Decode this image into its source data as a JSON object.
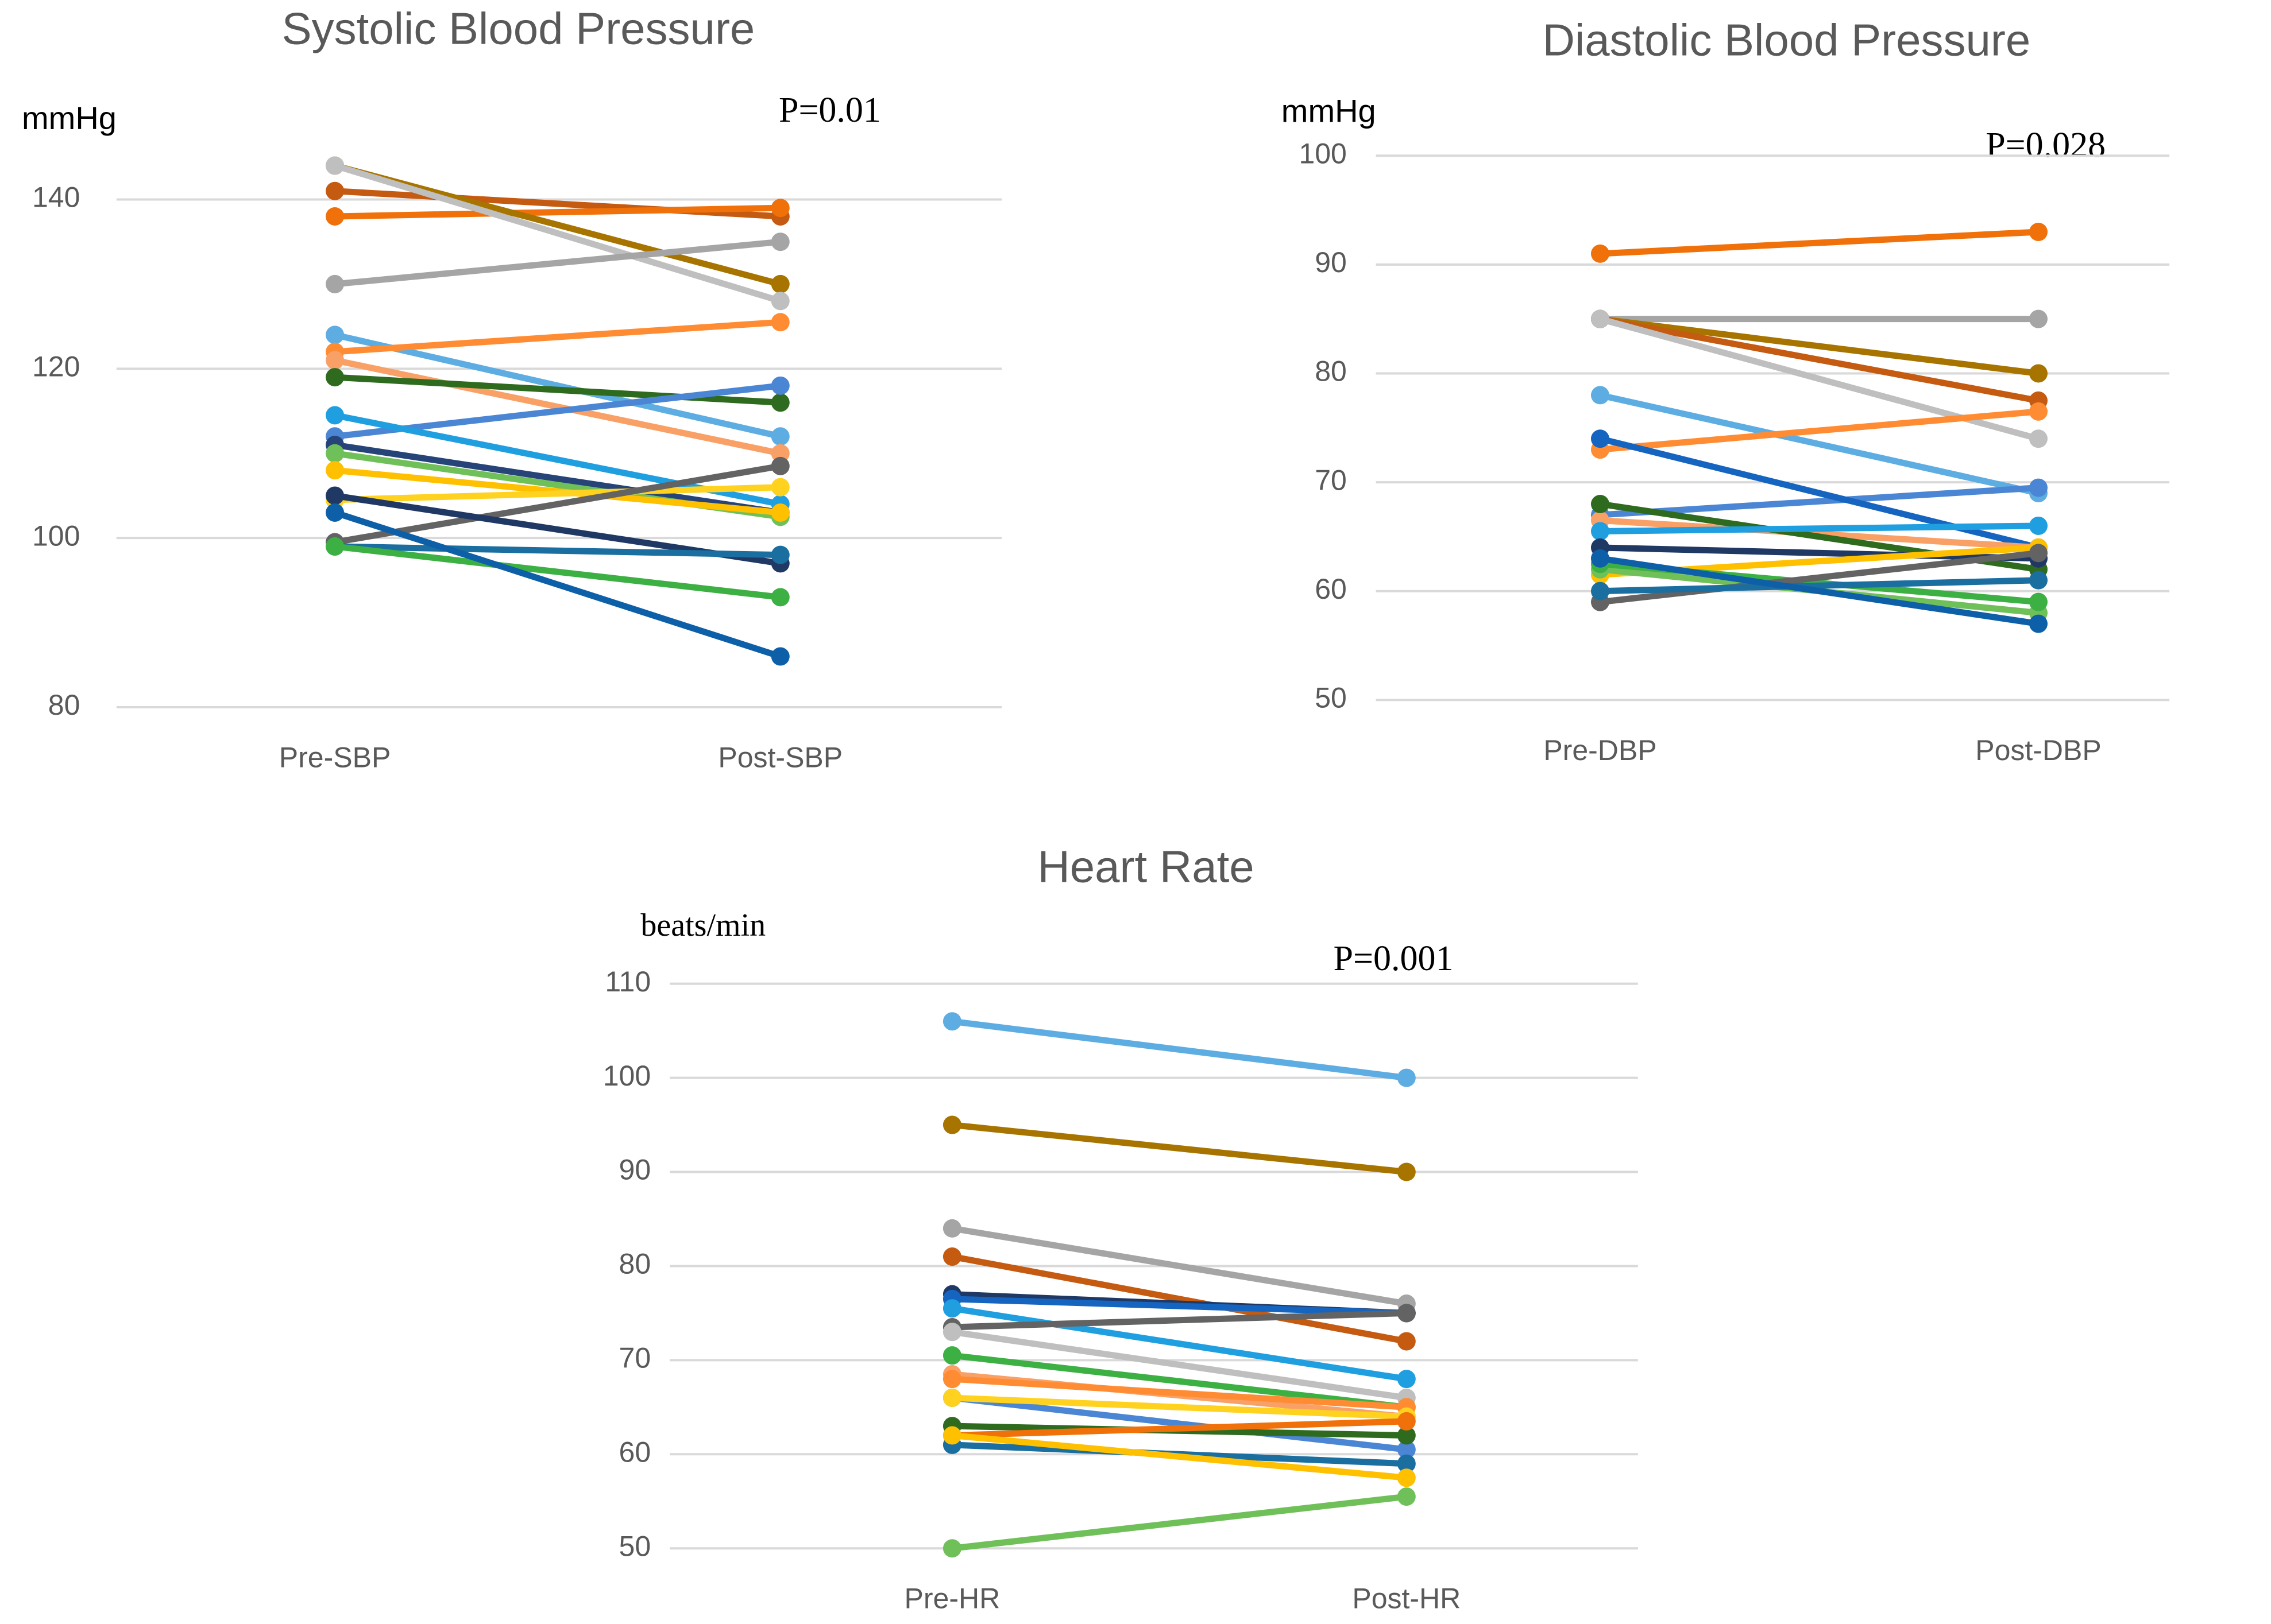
{
  "chart_data": [
    {
      "type": "line",
      "title": "Systolic Blood Pressure",
      "y_label": "mmHg",
      "annotation": "P=0.01",
      "categories": [
        "Pre-SBP",
        "Post-SBP"
      ],
      "ylim": [
        80,
        145
      ],
      "yticks": [
        80,
        100,
        120,
        140
      ],
      "grid": true,
      "series": [
        {
          "color": "#c55a11",
          "values": [
            141,
            138
          ]
        },
        {
          "color": "#f0700a",
          "values": [
            138,
            139
          ]
        },
        {
          "color": "#a87400",
          "values": [
            144,
            130
          ]
        },
        {
          "color": "#bfbfbf",
          "values": [
            144,
            128
          ]
        },
        {
          "color": "#a5a5a5",
          "values": [
            130,
            135
          ]
        },
        {
          "color": "#5dade2",
          "values": [
            124,
            112
          ]
        },
        {
          "color": "#ff8c33",
          "values": [
            122,
            125.5
          ]
        },
        {
          "color": "#f9a066",
          "values": [
            121,
            110
          ]
        },
        {
          "color": "#2e6b1f",
          "values": [
            119,
            116
          ]
        },
        {
          "color": "#4a86d4",
          "values": [
            112,
            118
          ]
        },
        {
          "color": "#1f9fe0",
          "values": [
            114.5,
            104
          ]
        },
        {
          "color": "#264478",
          "values": [
            111,
            103
          ]
        },
        {
          "color": "#70c05a",
          "values": [
            110,
            102.5
          ]
        },
        {
          "color": "#ffc000",
          "values": [
            108,
            103
          ]
        },
        {
          "color": "#ffd21f",
          "values": [
            104.5,
            106
          ]
        },
        {
          "color": "#636363",
          "values": [
            99.5,
            108.5
          ]
        },
        {
          "color": "#1f3864",
          "values": [
            105,
            97
          ]
        },
        {
          "color": "#1a6ea0",
          "values": [
            99,
            98
          ]
        },
        {
          "color": "#3cb043",
          "values": [
            99,
            93
          ]
        },
        {
          "color": "#0d5fa8",
          "values": [
            103,
            86
          ]
        }
      ]
    },
    {
      "type": "line",
      "title": "Diastolic Blood Pressure",
      "y_label": "mmHg",
      "annotation": "P=0.028",
      "categories": [
        "Pre-DBP",
        "Post-DBP"
      ],
      "ylim": [
        50,
        100
      ],
      "yticks": [
        50,
        60,
        70,
        80,
        90,
        100
      ],
      "grid": true,
      "series": [
        {
          "color": "#f0700a",
          "values": [
            91,
            93
          ]
        },
        {
          "color": "#a5a5a5",
          "values": [
            85,
            85
          ]
        },
        {
          "color": "#a87400",
          "values": [
            85,
            80
          ]
        },
        {
          "color": "#c55a11",
          "values": [
            85,
            77.5
          ]
        },
        {
          "color": "#bfbfbf",
          "values": [
            85,
            74
          ]
        },
        {
          "color": "#5dade2",
          "values": [
            78,
            69
          ]
        },
        {
          "color": "#ff8c33",
          "values": [
            73,
            76.5
          ]
        },
        {
          "color": "#4a86d4",
          "values": [
            67,
            69.5
          ]
        },
        {
          "color": "#1565c0",
          "values": [
            74,
            64
          ]
        },
        {
          "color": "#f9a066",
          "values": [
            66.5,
            64
          ]
        },
        {
          "color": "#2e6b1f",
          "values": [
            68,
            62
          ]
        },
        {
          "color": "#1f9fe0",
          "values": [
            65.5,
            66
          ]
        },
        {
          "color": "#1f3864",
          "values": [
            64,
            63
          ]
        },
        {
          "color": "#ffc000",
          "values": [
            61.5,
            64
          ]
        },
        {
          "color": "#70c05a",
          "values": [
            62,
            58
          ]
        },
        {
          "color": "#3cb043",
          "values": [
            62.5,
            59
          ]
        },
        {
          "color": "#636363",
          "values": [
            59,
            63.5
          ]
        },
        {
          "color": "#1a6ea0",
          "values": [
            60,
            61
          ]
        },
        {
          "color": "#0d5fa8",
          "values": [
            63,
            57
          ]
        }
      ]
    },
    {
      "type": "line",
      "title": "Heart Rate",
      "y_label": "beats/min",
      "annotation": "P=0.001",
      "categories": [
        "Pre-HR",
        "Post-HR"
      ],
      "ylim": [
        50,
        110
      ],
      "yticks": [
        50,
        60,
        70,
        80,
        90,
        100,
        110
      ],
      "grid": true,
      "series": [
        {
          "color": "#5dade2",
          "values": [
            106,
            100
          ]
        },
        {
          "color": "#a87400",
          "values": [
            95,
            90
          ]
        },
        {
          "color": "#a5a5a5",
          "values": [
            84,
            76
          ]
        },
        {
          "color": "#c55a11",
          "values": [
            81,
            72
          ]
        },
        {
          "color": "#1f3864",
          "values": [
            77,
            75
          ]
        },
        {
          "color": "#1565c0",
          "values": [
            76.5,
            75
          ]
        },
        {
          "color": "#1f9fe0",
          "values": [
            75.5,
            68
          ]
        },
        {
          "color": "#636363",
          "values": [
            73.5,
            75
          ]
        },
        {
          "color": "#bfbfbf",
          "values": [
            73,
            66
          ]
        },
        {
          "color": "#3cb043",
          "values": [
            70.5,
            65
          ]
        },
        {
          "color": "#f9a066",
          "values": [
            68.5,
            64
          ]
        },
        {
          "color": "#ff8c33",
          "values": [
            68,
            65
          ]
        },
        {
          "color": "#4a86d4",
          "values": [
            66,
            60.5
          ]
        },
        {
          "color": "#ffd21f",
          "values": [
            66,
            64
          ]
        },
        {
          "color": "#2e6b1f",
          "values": [
            63,
            62
          ]
        },
        {
          "color": "#f0700a",
          "values": [
            62,
            63.5
          ]
        },
        {
          "color": "#1a6ea0",
          "values": [
            61,
            59
          ]
        },
        {
          "color": "#ffc000",
          "values": [
            62,
            57.5
          ]
        },
        {
          "color": "#70c05a",
          "values": [
            50,
            55.5
          ]
        }
      ]
    }
  ]
}
